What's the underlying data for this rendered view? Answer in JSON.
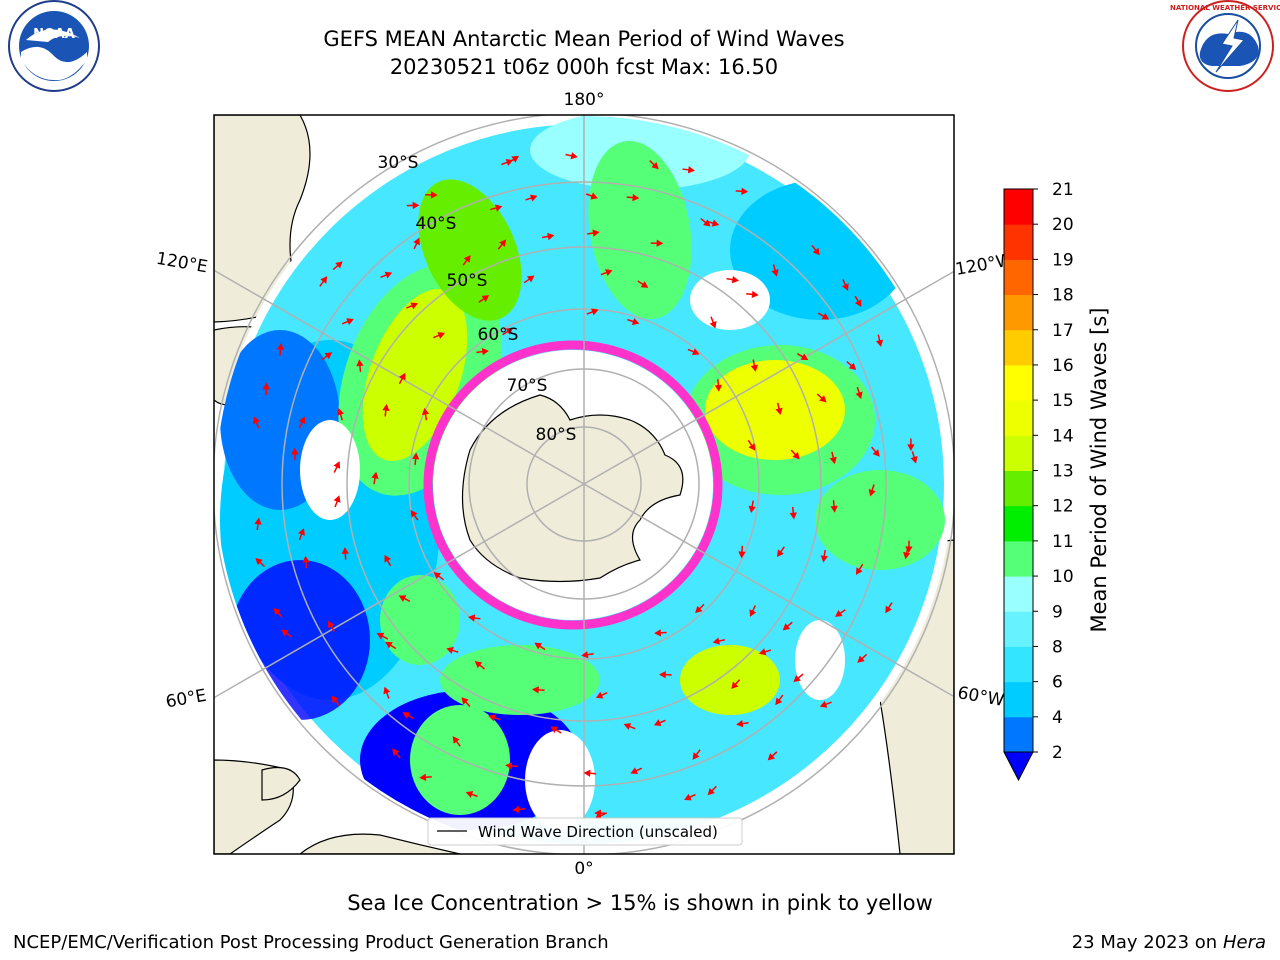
{
  "header": {
    "title_line1": "GEFS MEAN Antarctic Mean Period of Wind Waves",
    "title_line2": "20230521 t06z 000h fcst   Max: 16.50"
  },
  "logos": {
    "left": {
      "name": "NOAA",
      "text": "NOAA"
    },
    "right": {
      "name": "National Weather Service",
      "text": "NATIONAL WEATHER SERVICE"
    }
  },
  "map": {
    "projection": "south-polar-stereographic",
    "longitude_labels": {
      "top": "180°",
      "bottom": "0°",
      "left_upper": "120°E",
      "right_upper": "120°W",
      "left_lower": "60°E",
      "right_lower": "60°W"
    },
    "latitude_labels": [
      "30°S",
      "40°S",
      "50°S",
      "60°S",
      "70°S",
      "80°S"
    ],
    "legend": "Wind Wave Direction (unscaled)",
    "colors": {
      "land": "#efedda",
      "coastline": "#000000",
      "grid": "#b0b0b0",
      "arrow": "#ff0000",
      "sea_ice": "#ff33cc"
    }
  },
  "colorbar": {
    "label": "Mean Period of Wind Waves [s]",
    "ticks": [
      "2",
      "4",
      "6",
      "8",
      "9",
      "10",
      "11",
      "12",
      "13",
      "14",
      "15",
      "16",
      "17",
      "18",
      "19",
      "20",
      "21"
    ],
    "colors": [
      "#0000ff",
      "#0077ff",
      "#00ccff",
      "#33e5ff",
      "#66f2ff",
      "#99ffff",
      "#55ff77",
      "#00ee00",
      "#66ee00",
      "#ccff00",
      "#eeff00",
      "#ffff00",
      "#ffcc00",
      "#ff9900",
      "#ff6600",
      "#ff3300",
      "#ff0000"
    ]
  },
  "footer": {
    "ice_note": "Sea Ice Concentration > 15% is shown in pink to yellow",
    "credit": "NCEP/EMC/Verification Post Processing Product Generation Branch",
    "date": "23 May 2023 on",
    "machine": "Hera"
  }
}
